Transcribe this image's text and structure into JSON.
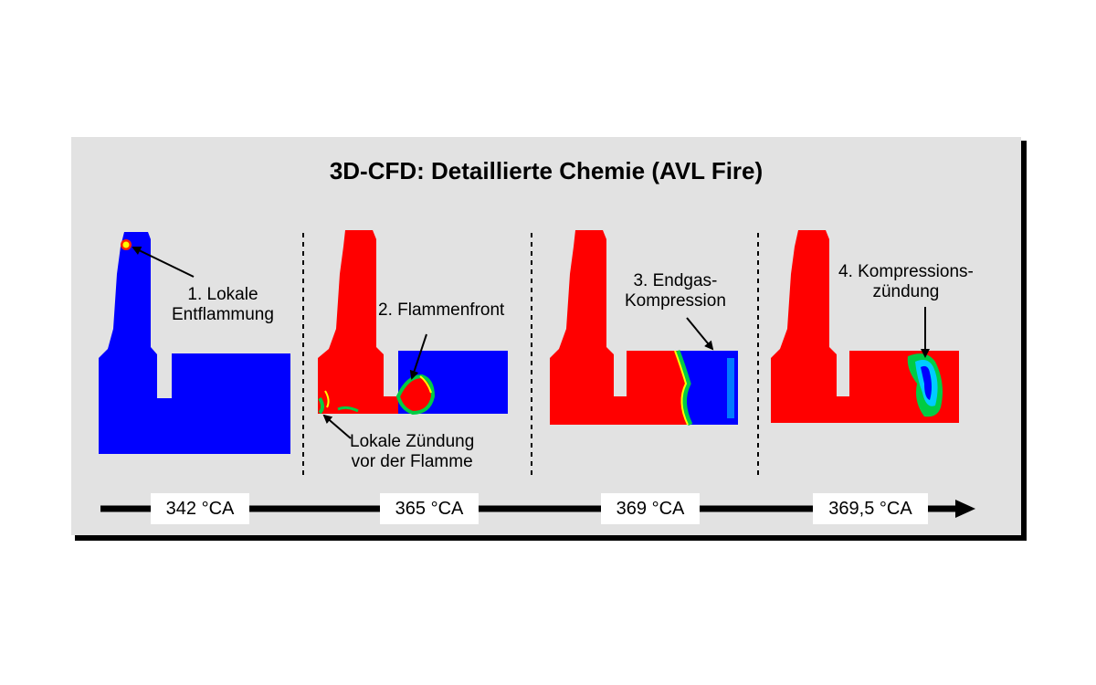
{
  "title": "3D-CFD: Detaillierte Chemie (AVL Fire)",
  "stages": [
    {
      "label_lines": [
        "1. Lokale",
        "Entflammung"
      ],
      "crank_angle": "342 °CA"
    },
    {
      "label_lines": [
        "2. Flammenfront"
      ],
      "note_lines": [
        "Lokale Zündung",
        "vor der Flamme"
      ],
      "crank_angle": "365 °CA"
    },
    {
      "label_lines": [
        "3. Endgas-",
        "Kompression"
      ],
      "crank_angle": "369 °CA"
    },
    {
      "label_lines": [
        "4. Kompressions-",
        "zündung"
      ],
      "crank_angle": "369,5 °CA"
    }
  ],
  "colors": {
    "burned": "#ff0000",
    "unburned": "#0000ff",
    "front_green": "#00cc44",
    "front_yellow": "#ffff00",
    "cyan": "#00ccff",
    "panel": "#e2e2e2"
  }
}
